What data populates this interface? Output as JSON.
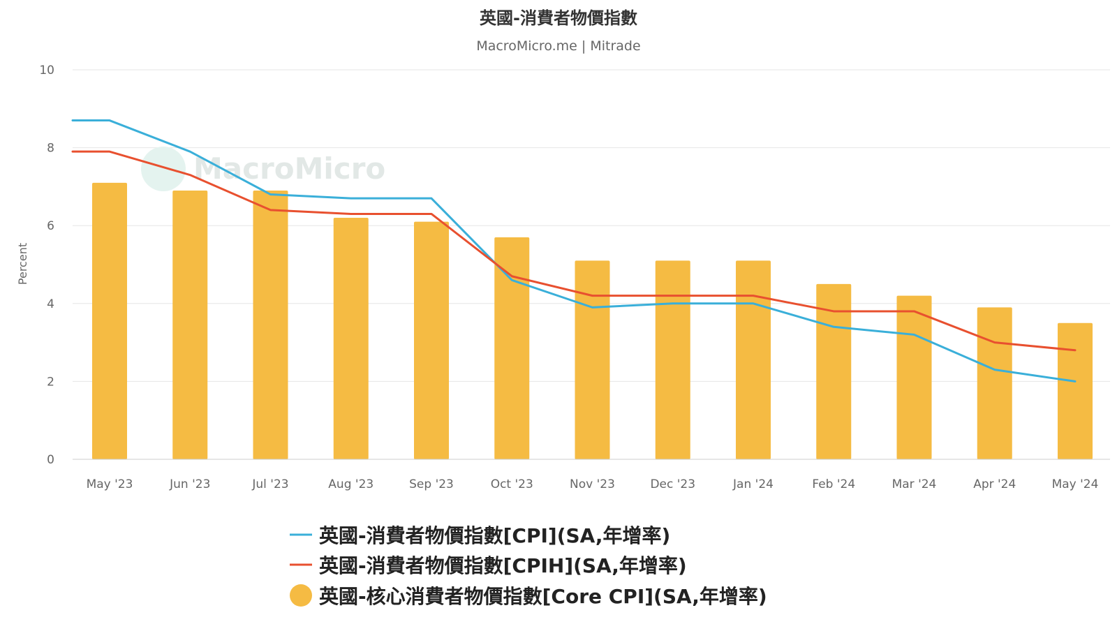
{
  "title": "英國-消費者物價指數",
  "subtitle": "MacroMicro.me | Mitrade",
  "watermark": "MacroMicro",
  "colors": {
    "cpi": "#3aafd9",
    "cpih": "#e8502f",
    "core": "#f5bb43",
    "grid": "#e6e6e6",
    "axis_text": "#666666",
    "title_text": "#333333"
  },
  "chart_data": {
    "type": "bar",
    "title": "英國-消費者物價指數",
    "subtitle": "MacroMicro.me | Mitrade",
    "xlabel": "",
    "ylabel": "Percent",
    "ylim": [
      0,
      10
    ],
    "yticks": [
      0,
      2,
      4,
      6,
      8,
      10
    ],
    "grid": true,
    "legend_position": "bottom",
    "categories": [
      "May '23",
      "Jun '23",
      "Jul '23",
      "Aug '23",
      "Sep '23",
      "Oct '23",
      "Nov '23",
      "Dec '23",
      "Jan '24",
      "Feb '24",
      "Mar '24",
      "Apr '24",
      "May '24"
    ],
    "series": [
      {
        "name": "英國-消費者物價指數[CPI](SA,年增率)",
        "type": "line",
        "color": "#3aafd9",
        "values": [
          8.7,
          7.9,
          6.8,
          6.7,
          6.7,
          4.6,
          3.9,
          4.0,
          4.0,
          3.4,
          3.2,
          2.3,
          2.0
        ]
      },
      {
        "name": "英國-消費者物價指數[CPIH](SA,年增率)",
        "type": "line",
        "color": "#e8502f",
        "values": [
          7.9,
          7.3,
          6.4,
          6.3,
          6.3,
          4.7,
          4.2,
          4.2,
          4.2,
          3.8,
          3.8,
          3.0,
          2.8
        ]
      },
      {
        "name": "英國-核心消費者物價指數[Core CPI](SA,年增率)",
        "type": "bar",
        "color": "#f5bb43",
        "values": [
          7.1,
          6.9,
          6.9,
          6.2,
          6.1,
          5.7,
          5.1,
          5.1,
          5.1,
          4.5,
          4.2,
          3.9,
          3.5
        ]
      }
    ]
  }
}
